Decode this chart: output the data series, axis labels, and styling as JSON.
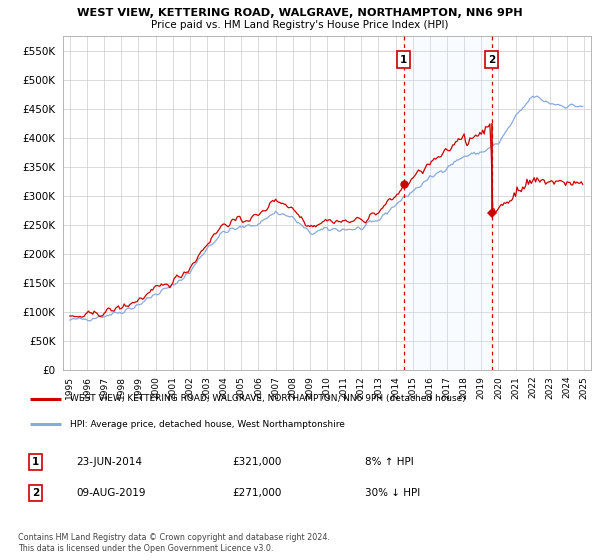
{
  "title": "WEST VIEW, KETTERING ROAD, WALGRAVE, NORTHAMPTON, NN6 9PH",
  "subtitle": "Price paid vs. HM Land Registry's House Price Index (HPI)",
  "legend_line1": "WEST VIEW, KETTERING ROAD, WALGRAVE, NORTHAMPTON, NN6 9PH (detached house)",
  "legend_line2": "HPI: Average price, detached house, West Northamptonshire",
  "footnote": "Contains HM Land Registry data © Crown copyright and database right 2024.\nThis data is licensed under the Open Government Licence v3.0.",
  "sale1_date": "23-JUN-2014",
  "sale1_price": "£321,000",
  "sale1_hpi": "8% ↑ HPI",
  "sale2_date": "09-AUG-2019",
  "sale2_price": "£271,000",
  "sale2_hpi": "30% ↓ HPI",
  "sale1_year": 2014.47,
  "sale1_price_val": 321000,
  "sale2_year": 2019.6,
  "sale2_price_val": 271000,
  "red_line_color": "#cc0000",
  "blue_line_color": "#88aadd",
  "ylim": [
    0,
    575000
  ],
  "yticks": [
    0,
    50000,
    100000,
    150000,
    200000,
    250000,
    300000,
    350000,
    400000,
    450000,
    500000,
    550000
  ],
  "bg_color": "#ffffff",
  "grid_color": "#cccccc",
  "shade_color": "#ddeeff"
}
